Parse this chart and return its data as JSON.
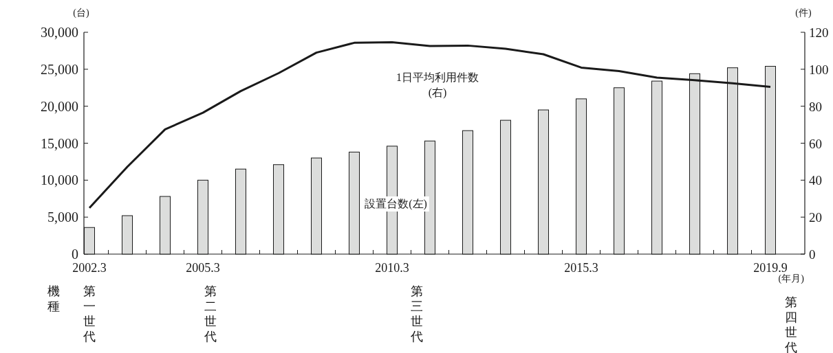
{
  "chart_data": {
    "type": "bar",
    "categories": [
      "2002.3",
      null,
      null,
      "2005.3",
      null,
      null,
      null,
      null,
      "2010.3",
      null,
      null,
      null,
      null,
      "2015.3",
      null,
      null,
      null,
      null,
      "2019.9"
    ],
    "series": [
      {
        "name": "設置台数(左)",
        "color": "#dcdddc",
        "values": [
          3600,
          5200,
          7800,
          10000,
          11500,
          12100,
          13000,
          13800,
          14600,
          15300,
          16700,
          18100,
          19500,
          21000,
          22500,
          23400,
          24400,
          25200,
          25400
        ]
      },
      {
        "type": "line",
        "axis": "y2",
        "name": "1日平均利用件数\n(右)",
        "color": "#1a1a1a",
        "values": [
          25,
          47.2,
          67.5,
          76.5,
          88.2,
          97.9,
          109,
          114.3,
          114.6,
          112.6,
          112.8,
          111.1,
          108.1,
          100.9,
          99,
          95.5,
          94.1,
          92.4,
          90.5
        ]
      }
    ],
    "ylabel": "(台)",
    "y2label": "(件)",
    "ylim": [
      0,
      30000
    ],
    "yticks": [
      0,
      {
        "value": 5000,
        "label": "5,000"
      },
      {
        "value": 10000,
        "label": "10,000"
      },
      {
        "value": 15000,
        "label": "15,000"
      },
      {
        "value": 20000,
        "label": "20,000"
      },
      {
        "value": 25000,
        "label": "25,000"
      },
      {
        "value": 30000,
        "label": "30,000"
      }
    ],
    "y2lim": [
      0,
      120
    ],
    "y2ticks": [
      0,
      20,
      40,
      60,
      80,
      100,
      120
    ],
    "annotations": [
      "機種",
      "第一世代",
      "第二世代",
      "第三世代",
      "(年月)",
      "第四世代"
    ],
    "grid": false
  }
}
